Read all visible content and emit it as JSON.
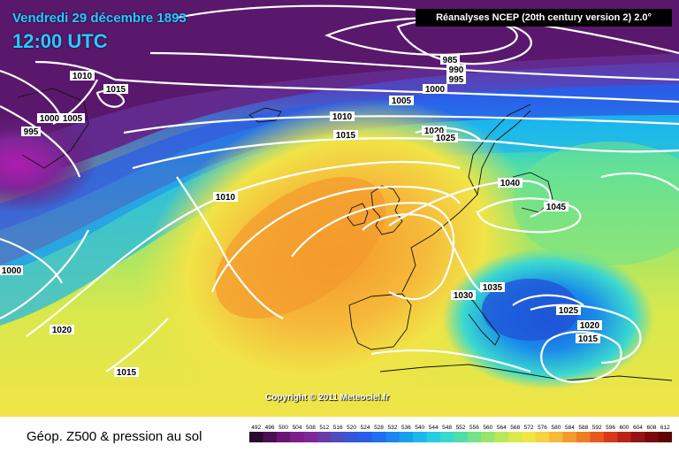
{
  "header": {
    "date": "Vendredi 29 décembre 1893",
    "time": "12:00 UTC"
  },
  "source": "Réanalyses NCEP (20th century version 2) 2.0°",
  "copyright": "Copyright © 2011 Meteociel.fr",
  "footer_title": "Géop. Z500 & pression au sol",
  "legend": {
    "values": [
      "492",
      "496",
      "500",
      "504",
      "508",
      "512",
      "516",
      "520",
      "524",
      "528",
      "532",
      "536",
      "540",
      "544",
      "548",
      "552",
      "556",
      "560",
      "564",
      "568",
      "572",
      "576",
      "580",
      "584",
      "588",
      "592",
      "596",
      "600",
      "604",
      "608",
      "612"
    ],
    "colors": [
      "#2a0a2e",
      "#4a0f50",
      "#6a1575",
      "#7d1e8a",
      "#7f2699",
      "#6a3aa8",
      "#4b4dc0",
      "#3556d6",
      "#2a5de8",
      "#1f6ff0",
      "#1987ef",
      "#18a0ee",
      "#1cb7ec",
      "#26cbe6",
      "#3ad8cf",
      "#4fdeaa",
      "#72e38a",
      "#98e56e",
      "#bbe85a",
      "#d9e84c",
      "#f0e447",
      "#f7d243",
      "#f6b93a",
      "#f39a2c",
      "#ee7d23",
      "#e65a1c",
      "#d63a18",
      "#b82416",
      "#951414",
      "#7a0a0a",
      "#5c0505"
    ]
  },
  "isobars": [
    {
      "id": "i985",
      "label": "985"
    },
    {
      "id": "i990",
      "label": "990"
    },
    {
      "id": "i995a",
      "label": "995"
    },
    {
      "id": "i995b",
      "label": "995"
    },
    {
      "id": "i1000a",
      "label": "1000"
    },
    {
      "id": "i1000b",
      "label": "1000"
    },
    {
      "id": "i1000c",
      "label": "1000"
    },
    {
      "id": "i1005a",
      "label": "1005"
    },
    {
      "id": "i1005b",
      "label": "1005"
    },
    {
      "id": "i1010a",
      "label": "1010"
    },
    {
      "id": "i1010b",
      "label": "1010"
    },
    {
      "id": "i1010c",
      "label": "1010"
    },
    {
      "id": "i1015a",
      "label": "1015"
    },
    {
      "id": "i1015b",
      "label": "1015"
    },
    {
      "id": "i1015c",
      "label": "1015"
    },
    {
      "id": "i1015d",
      "label": "1015"
    },
    {
      "id": "i1020a",
      "label": "1020"
    },
    {
      "id": "i1020b",
      "label": "1020"
    },
    {
      "id": "i1020c",
      "label": "1020"
    },
    {
      "id": "i1025a",
      "label": "1025"
    },
    {
      "id": "i1025b",
      "label": "1025"
    },
    {
      "id": "i1030",
      "label": "1030"
    },
    {
      "id": "i1035",
      "label": "1035"
    },
    {
      "id": "i1040",
      "label": "1040"
    },
    {
      "id": "i1045",
      "label": "1045"
    }
  ]
}
